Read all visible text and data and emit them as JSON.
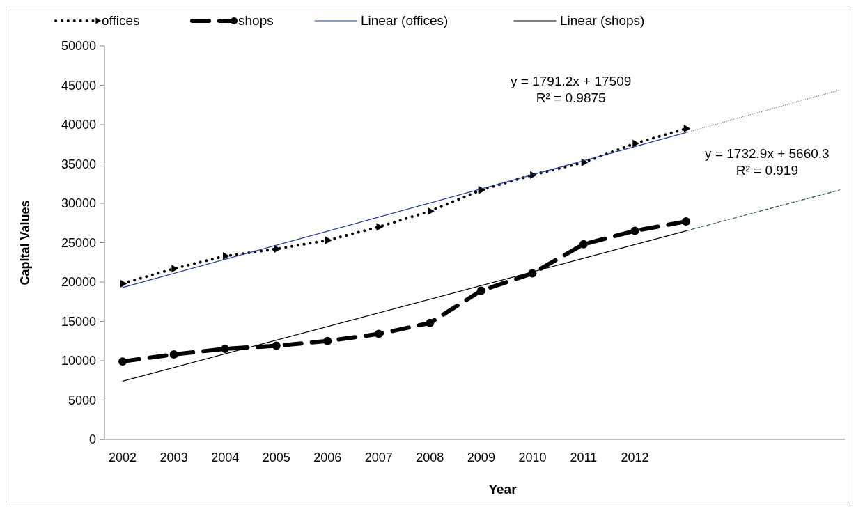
{
  "chart_data": {
    "type": "line",
    "xlabel": "Year",
    "ylabel": "Capital Values",
    "xlim": [
      2001.55,
      2016.1
    ],
    "xticks": [
      2002,
      2003,
      2004,
      2005,
      2006,
      2007,
      2008,
      2009,
      2010,
      2011,
      2012
    ],
    "ylim": [
      0,
      50000
    ],
    "yticks": [
      0,
      5000,
      10000,
      15000,
      20000,
      25000,
      30000,
      35000,
      40000,
      45000,
      50000
    ],
    "grid": false,
    "legend": "top",
    "series": [
      {
        "name": "offices",
        "color": "#000000",
        "line_style": "dotted",
        "marker": "triangle",
        "x": [
          2002,
          2003,
          2004,
          2005,
          2006,
          2007,
          2008,
          2009,
          2010,
          2011,
          2012,
          2013
        ],
        "values": [
          19800,
          21700,
          23300,
          24200,
          25300,
          27000,
          29000,
          31700,
          33600,
          35200,
          37600,
          39500
        ]
      },
      {
        "name": "shops",
        "color": "#000000",
        "line_style": "dashed",
        "marker": "circle",
        "x": [
          2002,
          2003,
          2004,
          2005,
          2006,
          2007,
          2008,
          2009,
          2010,
          2011,
          2012,
          2013
        ],
        "values": [
          9900,
          10800,
          11500,
          11900,
          12500,
          13400,
          14800,
          18900,
          21100,
          24800,
          26500,
          27700
        ]
      },
      {
        "name": "Linear (offices)",
        "color": "#1f3a93",
        "line_style": "solid",
        "marker": "none",
        "x": [
          2002,
          2013
        ],
        "values": [
          19300,
          39000
        ]
      },
      {
        "name": "Linear (shops)",
        "color": "#000000",
        "line_style": "solid",
        "marker": "none",
        "x": [
          2002,
          2013
        ],
        "values": [
          7400,
          26500
        ]
      },
      {
        "color": "#8a3f8a",
        "line_style": "dotted",
        "marker": "none",
        "x": [
          2013,
          2016
        ],
        "values": [
          39000,
          44400
        ]
      },
      {
        "color": "#1e5a3a",
        "line_style": "dashed",
        "marker": "none",
        "x": [
          2013,
          2016
        ],
        "values": [
          26500,
          31700
        ]
      }
    ],
    "annotations": [
      "y = 1791.2x + 17509\nR² = 0.9875",
      "y = 1732.9x + 5660.3\nR² = 0.919"
    ]
  }
}
